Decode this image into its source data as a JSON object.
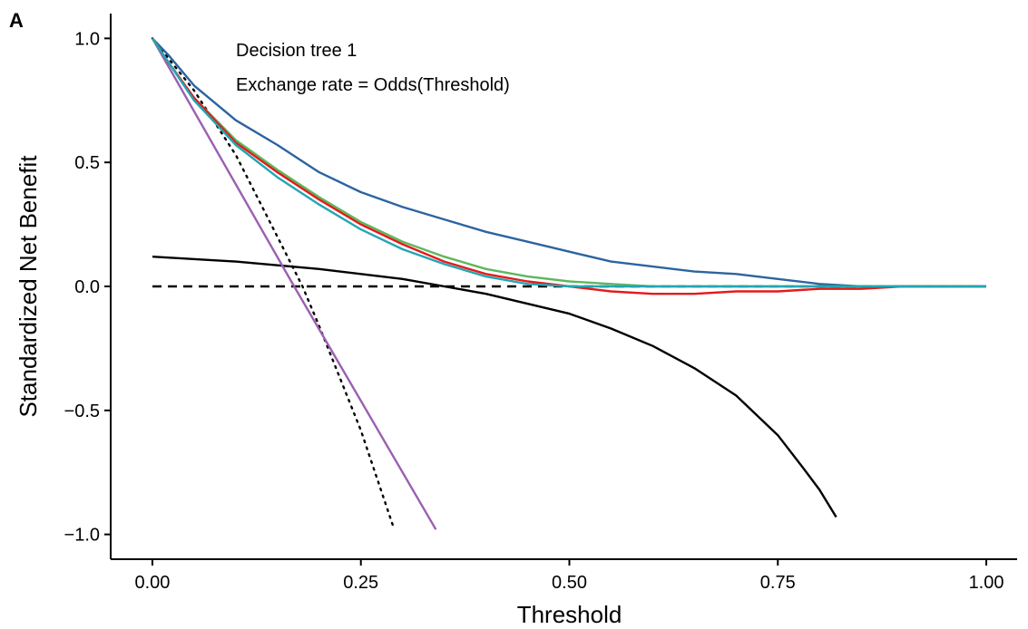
{
  "panel_label": "A",
  "chart_data": {
    "type": "line",
    "title": "",
    "xlabel": "Threshold",
    "ylabel": "Standardized Net Benefit",
    "xlim": [
      -0.05,
      1.05
    ],
    "ylim": [
      -1.1,
      1.1
    ],
    "xticks": [
      0.0,
      0.25,
      0.5,
      0.75,
      1.0
    ],
    "xtick_labels": [
      "0.00",
      "0.25",
      "0.50",
      "0.75",
      "1.00"
    ],
    "yticks": [
      1.0,
      0.5,
      0.0,
      -0.5,
      -1.0
    ],
    "ytick_labels": [
      "1.0",
      "0.5",
      "0.0",
      "−0.5",
      "−1.0"
    ],
    "grid": false,
    "legend": "none",
    "annotations": [
      "Decision tree 1",
      "Exchange rate = Odds(Threshold)"
    ],
    "series": [
      {
        "color": "#000000",
        "style": "dashed",
        "x": [
          0.0,
          1.0
        ],
        "y": [
          0.0,
          0.0
        ]
      },
      {
        "color": "#000000",
        "style": "solid",
        "x": [
          0.0,
          0.1,
          0.2,
          0.3,
          0.4,
          0.5,
          0.55,
          0.6,
          0.65,
          0.7,
          0.75,
          0.78,
          0.8,
          0.82
        ],
        "y": [
          0.12,
          0.1,
          0.07,
          0.03,
          -0.03,
          -0.11,
          -0.17,
          -0.24,
          -0.33,
          -0.44,
          -0.6,
          -0.73,
          -0.82,
          -0.93
        ]
      },
      {
        "color": "#000000",
        "style": "dotted",
        "x": [
          0.0,
          0.05,
          0.1,
          0.15,
          0.18,
          0.2,
          0.25,
          0.29
        ],
        "y": [
          1.0,
          0.79,
          0.53,
          0.2,
          0.0,
          -0.16,
          -0.58,
          -0.98
        ]
      },
      {
        "color": "#9b5fb0",
        "style": "solid",
        "x": [
          0.0,
          0.17,
          0.34
        ],
        "y": [
          1.0,
          0.0,
          -0.98
        ]
      },
      {
        "color": "#2c64a0",
        "style": "solid",
        "x": [
          0.0,
          0.02,
          0.05,
          0.1,
          0.15,
          0.2,
          0.25,
          0.3,
          0.35,
          0.4,
          0.45,
          0.5,
          0.55,
          0.6,
          0.65,
          0.7,
          0.75,
          0.8,
          0.85,
          0.9,
          0.95,
          1.0
        ],
        "y": [
          1.0,
          0.93,
          0.81,
          0.67,
          0.57,
          0.46,
          0.38,
          0.32,
          0.27,
          0.22,
          0.18,
          0.14,
          0.1,
          0.08,
          0.06,
          0.05,
          0.03,
          0.01,
          0.0,
          0.0,
          0.0,
          0.0
        ]
      },
      {
        "color": "#5cb85c",
        "style": "solid",
        "x": [
          0.0,
          0.02,
          0.05,
          0.1,
          0.15,
          0.2,
          0.25,
          0.3,
          0.35,
          0.4,
          0.45,
          0.5,
          0.55,
          0.6,
          0.7,
          0.8,
          0.9,
          1.0
        ],
        "y": [
          1.0,
          0.9,
          0.76,
          0.59,
          0.47,
          0.36,
          0.26,
          0.18,
          0.12,
          0.07,
          0.04,
          0.02,
          0.01,
          0.0,
          0.0,
          0.0,
          0.0,
          0.0
        ]
      },
      {
        "color": "#e41a1c",
        "style": "solid",
        "x": [
          0.0,
          0.02,
          0.05,
          0.1,
          0.15,
          0.2,
          0.25,
          0.3,
          0.35,
          0.4,
          0.45,
          0.5,
          0.55,
          0.6,
          0.65,
          0.7,
          0.75,
          0.8,
          0.85,
          0.9,
          1.0
        ],
        "y": [
          1.0,
          0.9,
          0.76,
          0.58,
          0.46,
          0.35,
          0.25,
          0.17,
          0.1,
          0.05,
          0.02,
          0.0,
          -0.02,
          -0.03,
          -0.03,
          -0.02,
          -0.02,
          -0.01,
          -0.01,
          0.0,
          0.0
        ]
      },
      {
        "color": "#22a6b3",
        "style": "solid",
        "x": [
          0.0,
          0.02,
          0.05,
          0.1,
          0.15,
          0.2,
          0.25,
          0.3,
          0.35,
          0.4,
          0.45,
          0.5,
          0.55,
          0.6,
          0.7,
          0.8,
          0.9,
          1.0
        ],
        "y": [
          1.0,
          0.9,
          0.75,
          0.57,
          0.44,
          0.33,
          0.23,
          0.15,
          0.09,
          0.04,
          0.01,
          0.0,
          0.0,
          0.0,
          0.0,
          0.0,
          0.0,
          0.0
        ]
      }
    ]
  }
}
